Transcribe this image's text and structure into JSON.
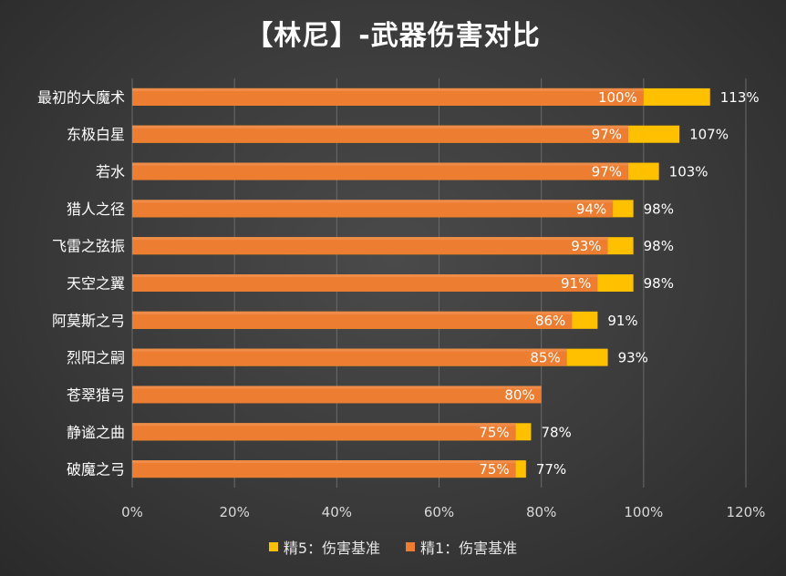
{
  "chart_data": {
    "type": "bar",
    "orientation": "horizontal",
    "title": "【林尼】-武器伤害对比",
    "categories": [
      "最初的大魔术",
      "东极白星",
      "若水",
      "猎人之径",
      "飞雷之弦振",
      "天空之翼",
      "阿莫斯之弓",
      "烈阳之嗣",
      "苍翠猎弓",
      "静谧之曲",
      "破魔之弓"
    ],
    "series": [
      {
        "name": "精5：伤害基准",
        "color": "#FFC000",
        "values": [
          1.13,
          1.07,
          1.03,
          0.98,
          0.98,
          0.98,
          0.91,
          0.93,
          null,
          0.78,
          0.77
        ],
        "labels": [
          "113%",
          "107%",
          "103%",
          "98%",
          "98%",
          "98%",
          "91%",
          "93%",
          "",
          "78%",
          "77%"
        ]
      },
      {
        "name": "精1：伤害基准",
        "color": "#ED7D31",
        "values": [
          1.0,
          0.97,
          0.97,
          0.94,
          0.93,
          0.91,
          0.86,
          0.85,
          0.8,
          0.75,
          0.75
        ],
        "labels": [
          "100%",
          "97%",
          "97%",
          "94%",
          "93%",
          "91%",
          "86%",
          "85%",
          "80%",
          "75%",
          "75%"
        ]
      }
    ],
    "xlim": [
      0,
      1.2
    ],
    "xticks": [
      "0%",
      "20%",
      "40%",
      "60%",
      "80%",
      "100%",
      "120%"
    ],
    "grid": true,
    "legend_position": "bottom"
  }
}
